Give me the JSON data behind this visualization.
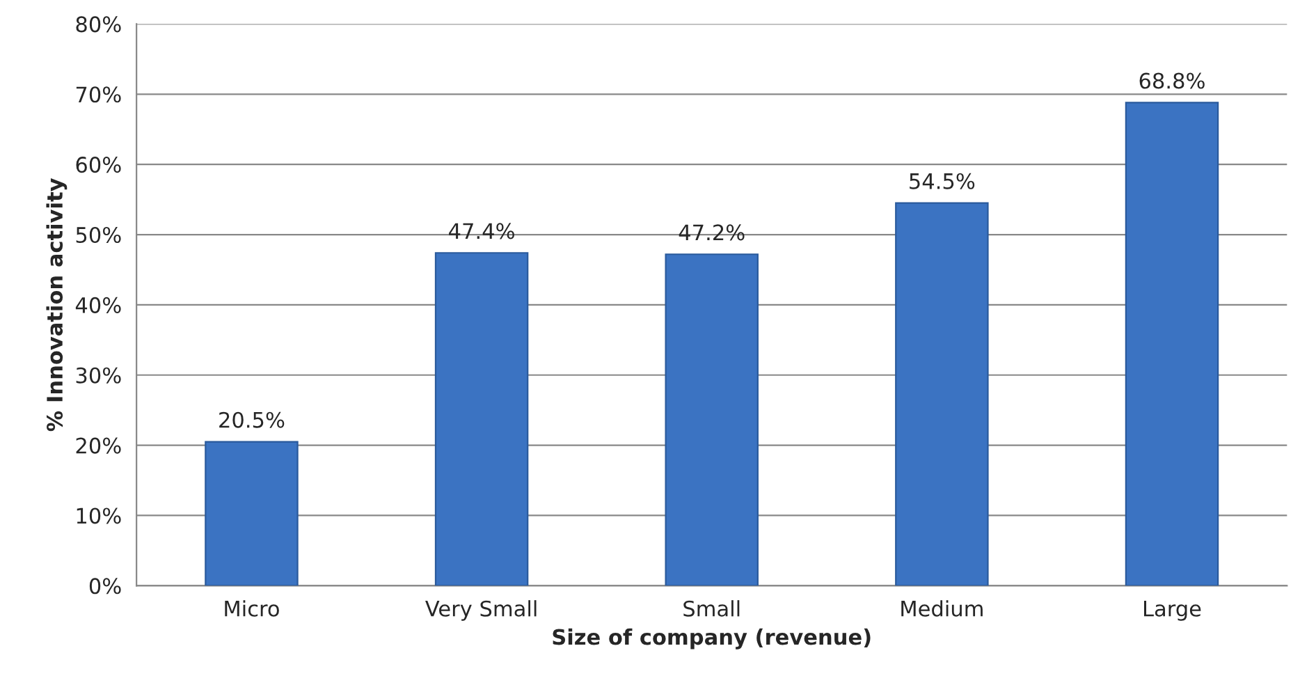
{
  "chart_data": {
    "type": "bar",
    "xlabel": "Size of company (revenue)",
    "ylabel": "% Innovation activity",
    "categories": [
      "Micro",
      "Very Small",
      "Small",
      "Medium",
      "Large"
    ],
    "values": [
      20.5,
      47.4,
      47.2,
      54.5,
      68.8
    ],
    "value_labels": [
      "20.5%",
      "47.4%",
      "47.2%",
      "54.5%",
      "68.8%"
    ],
    "color": "#3b73c2",
    "ylim": [
      0,
      80
    ],
    "yticks": [
      {
        "value": 0,
        "label": "0%"
      },
      {
        "value": 10,
        "label": "10%"
      },
      {
        "value": 20,
        "label": "20%"
      },
      {
        "value": 30,
        "label": "30%"
      },
      {
        "value": 40,
        "label": "40%"
      },
      {
        "value": 50,
        "label": "50%"
      },
      {
        "value": 60,
        "label": "60%"
      },
      {
        "value": 70,
        "label": "70%"
      },
      {
        "value": 80,
        "label": "80%"
      }
    ],
    "grid": "y",
    "legend": false
  }
}
